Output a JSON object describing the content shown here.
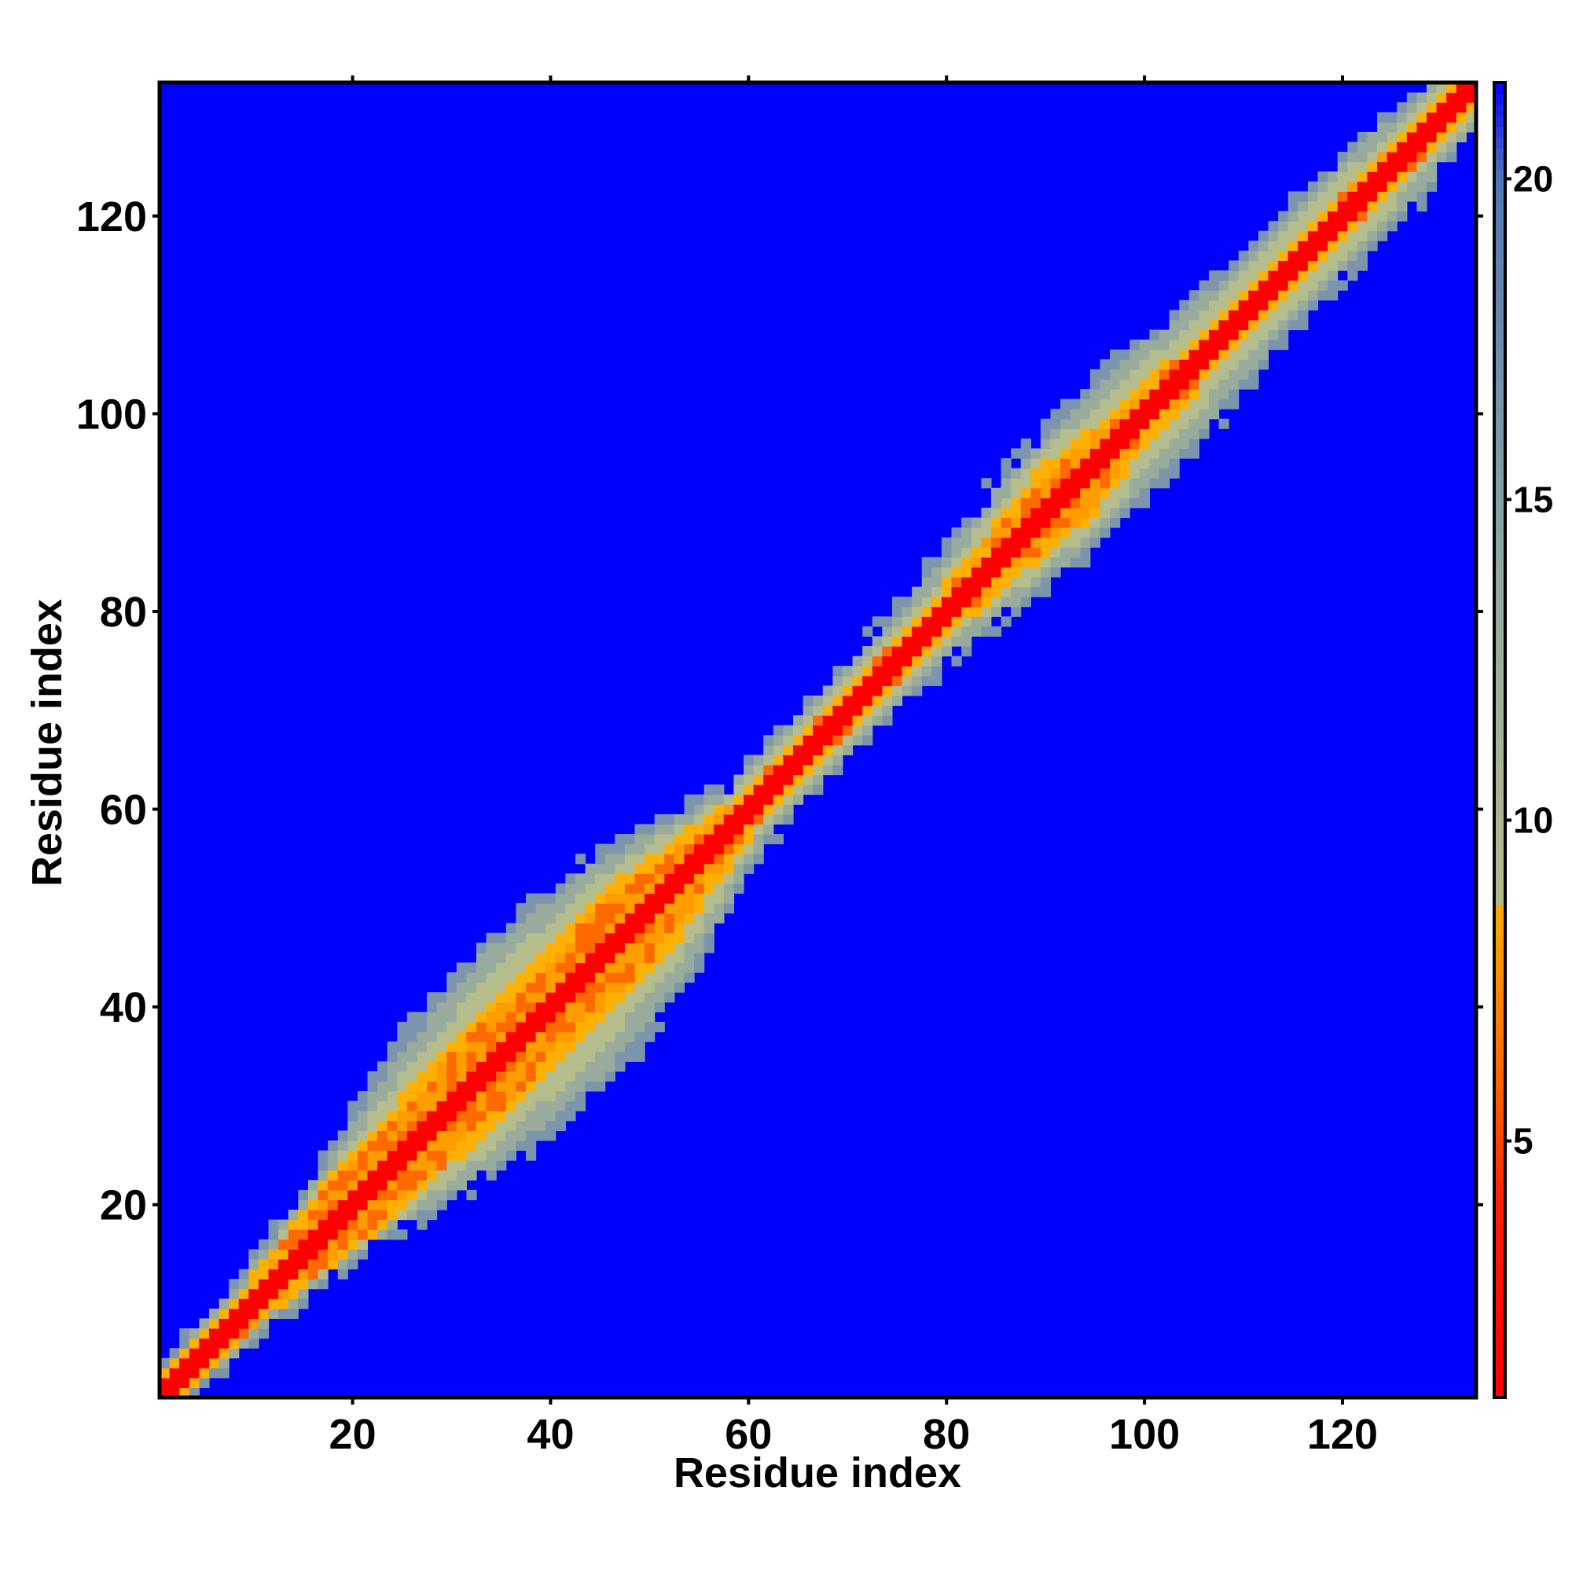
{
  "chart_data": {
    "type": "heatmap",
    "title": "",
    "xlabel": "Residue index",
    "ylabel": "Residue index",
    "xlim": [
      1,
      133
    ],
    "ylim": [
      1,
      133
    ],
    "x_ticks": [
      20,
      40,
      60,
      80,
      100,
      120
    ],
    "y_ticks": [
      20,
      40,
      60,
      80,
      100,
      120
    ],
    "colorbar": {
      "range": [
        1,
        21.5
      ],
      "ticks": [
        5,
        10,
        15,
        20
      ],
      "colors": [
        {
          "value": 1,
          "color": "#ff0000"
        },
        {
          "value": 4,
          "color": "#ff2000"
        },
        {
          "value": 6,
          "color": "#ff6600"
        },
        {
          "value": 8.5,
          "color": "#ffa500"
        },
        {
          "value": 9,
          "color": "#b4b98c"
        },
        {
          "value": 14,
          "color": "#8fa8a0"
        },
        {
          "value": 20,
          "color": "#4f78b8"
        },
        {
          "value": 21.5,
          "color": "#0000ff"
        }
      ]
    },
    "background_color": "#0000ff",
    "matrix_description_values": {
      "diagonal_distance": 1,
      "near_diagonal_distance": 4,
      "background_distance": 21.5
    },
    "band_profile": [
      {
        "residue": 1,
        "orange_halfwidth": 1,
        "green_halfwidth": 3
      },
      {
        "residue": 10,
        "orange_halfwidth": 1.5,
        "green_halfwidth": 4
      },
      {
        "residue": 20,
        "orange_halfwidth": 4,
        "green_halfwidth": 7
      },
      {
        "residue": 30,
        "orange_halfwidth": 5,
        "green_halfwidth": 12
      },
      {
        "residue": 40,
        "orange_halfwidth": 5,
        "green_halfwidth": 14
      },
      {
        "residue": 50,
        "orange_halfwidth": 5,
        "green_halfwidth": 11
      },
      {
        "residue": 60,
        "orange_halfwidth": 1.5,
        "green_halfwidth": 5
      },
      {
        "residue": 70,
        "orange_halfwidth": 1.5,
        "green_halfwidth": 5
      },
      {
        "residue": 80,
        "orange_halfwidth": 1.5,
        "green_halfwidth": 6
      },
      {
        "residue": 92,
        "orange_halfwidth": 4,
        "green_halfwidth": 9
      },
      {
        "residue": 100,
        "orange_halfwidth": 2,
        "green_halfwidth": 9
      },
      {
        "residue": 110,
        "orange_halfwidth": 1.5,
        "green_halfwidth": 7
      },
      {
        "residue": 120,
        "orange_halfwidth": 1.5,
        "green_halfwidth": 7
      },
      {
        "residue": 133,
        "orange_halfwidth": 1.5,
        "green_halfwidth": 5
      }
    ]
  }
}
